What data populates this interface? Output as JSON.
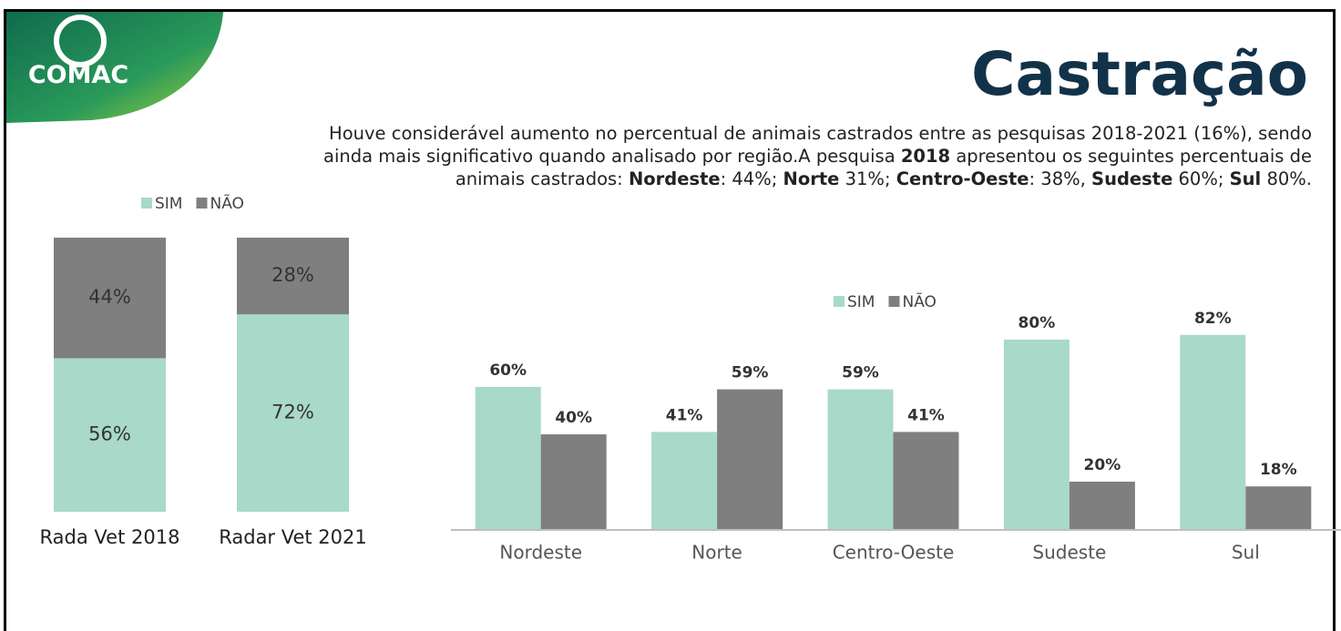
{
  "logo": "COMAC",
  "title": "Castração",
  "paragraph_lines": [
    [
      {
        "text": "Houve considerável aumento no percentual de animais castrados entre as pesquisas 2018-2021 (16%), sendo",
        "bold": false
      }
    ],
    [
      {
        "text": "ainda mais significativo quando analisado por região.A pesquisa ",
        "bold": false
      },
      {
        "text": "2018",
        "bold": true
      },
      {
        "text": " apresentou os seguintes percentuais de",
        "bold": false
      }
    ],
    [
      {
        "text": "animais castrados: ",
        "bold": false
      },
      {
        "text": "Nordeste",
        "bold": true
      },
      {
        "text": ": 44%; ",
        "bold": false
      },
      {
        "text": "Norte",
        "bold": true
      },
      {
        "text": " 31%; ",
        "bold": false
      },
      {
        "text": "Centro-Oeste",
        "bold": true
      },
      {
        "text": ": 38%, ",
        "bold": false
      },
      {
        "text": "Sudeste",
        "bold": true
      },
      {
        "text": " 60%; ",
        "bold": false
      },
      {
        "text": "Sul",
        "bold": true
      },
      {
        "text": " 80%.",
        "bold": false
      }
    ]
  ],
  "chart_data": [
    {
      "type": "bar",
      "stacked": true,
      "categories": [
        "Rada Vet 2018",
        "Radar Vet 2021"
      ],
      "series": [
        {
          "name": "SIM",
          "color": "#a9d9c8",
          "values": [
            56,
            72
          ],
          "value_labels": [
            "56%",
            "72%"
          ]
        },
        {
          "name": "NÃO",
          "color": "#7f7f7f",
          "values": [
            44,
            28
          ],
          "value_labels": [
            "44%",
            "28%"
          ]
        }
      ],
      "ylim": [
        0,
        100
      ]
    },
    {
      "type": "bar",
      "stacked": false,
      "categories": [
        "Nordeste",
        "Norte",
        "Centro-Oeste",
        "Sudeste",
        "Sul"
      ],
      "series": [
        {
          "name": "SIM",
          "color": "#a9d9c8",
          "values": [
            60,
            41,
            59,
            80,
            82
          ],
          "value_labels": [
            "60%",
            "41%",
            "59%",
            "80%",
            "82%"
          ]
        },
        {
          "name": "NÃO",
          "color": "#7f7f7f",
          "values": [
            40,
            59,
            41,
            20,
            18
          ],
          "value_labels": [
            "40%",
            "59%",
            "41%",
            "20%",
            "18%"
          ]
        }
      ],
      "ylim": [
        0,
        100
      ]
    }
  ]
}
